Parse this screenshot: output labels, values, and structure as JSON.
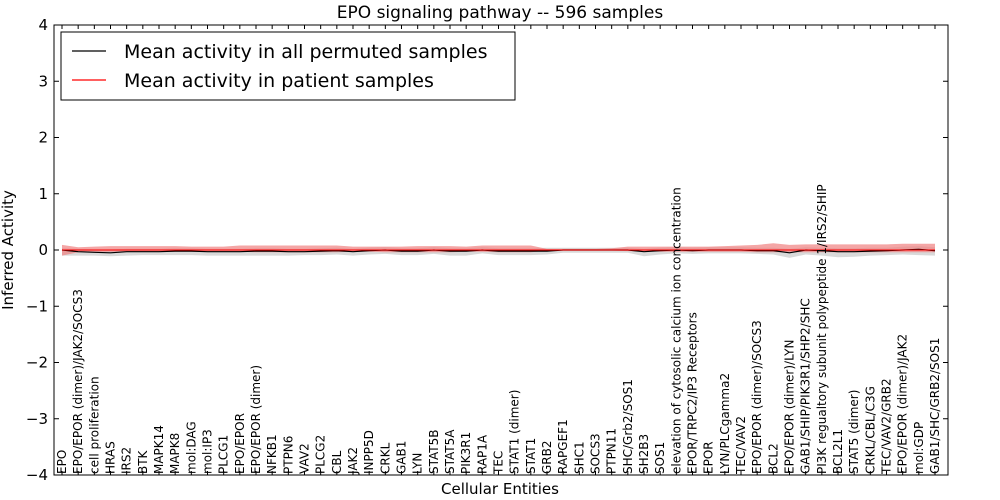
{
  "chart_data": {
    "type": "line",
    "title": "EPO signaling pathway -- 596 samples",
    "xlabel": "Cellular Entities",
    "ylabel": "Inferred Activity",
    "ylim": [
      -4,
      4
    ],
    "yticks": [
      -4,
      -3,
      -2,
      -1,
      0,
      1,
      2,
      3,
      4
    ],
    "legend_position": "top-left",
    "colors": {
      "permuted": "#000000",
      "permuted_band": "#cccccc",
      "patient": "#ff0000",
      "patient_band": "#f08080"
    },
    "categories": [
      "EPO",
      "EPO/EPOR (dimer)/JAK2/SOCS3",
      "cell proliferation",
      "HRAS",
      "IRS2",
      "BTK",
      "MAPK14",
      "MAPK8",
      "mol:DAG",
      "mol:IP3",
      "PLCG1",
      "EPO/EPOR",
      "EPO/EPOR (dimer)",
      "NFKB1",
      "PTPN6",
      "VAV2",
      "PLCG2",
      "CBL",
      "JAK2",
      "INPP5D",
      "CRKL",
      "GAB1",
      "LYN",
      "STAT5B",
      "STAT5A",
      "PIK3R1",
      "RAP1A",
      "TEC",
      "STAT1 (dimer)",
      "STAT1",
      "GRB2",
      "RAPGEF1",
      "SHC1",
      "SOCS3",
      "PTPN11",
      "SHC/Grb2/SOS1",
      "SH2B3",
      "SOS1",
      "elevation of cytosolic calcium ion concentration",
      "EPOR/TRPC2/IP3 Receptors",
      "EPOR",
      "LYN/PLCgamma2",
      "TEC/VAV2",
      "EPO/EPOR (dimer)/SOCS3",
      "BCL2",
      "EPO/EPOR (dimer)/LYN",
      "GAB1/SHIP/PIK3R1/SHP2/SHC",
      "PI3K regualtory subunit polypeptide 1/IRS2/SHIP",
      "BCL2L1",
      "STAT5 (dimer)",
      "CRKL/CBL/C3G",
      "TEC/VAV2/GRB2",
      "EPO/EPOR (dimer)/JAK2",
      "mol:GDP",
      "GAB1/SHC/GRB2/SOS1"
    ],
    "series": [
      {
        "name": "Mean activity in all permuted samples",
        "color": "#000000",
        "values": [
          0.0,
          -0.03,
          -0.04,
          -0.05,
          -0.03,
          -0.03,
          -0.03,
          -0.02,
          -0.02,
          -0.03,
          -0.03,
          -0.03,
          -0.02,
          -0.02,
          -0.03,
          -0.03,
          -0.02,
          -0.01,
          -0.03,
          -0.01,
          0.0,
          -0.02,
          -0.02,
          0.0,
          -0.02,
          -0.02,
          0.0,
          -0.02,
          -0.02,
          -0.02,
          -0.02,
          0.0,
          0.0,
          0.0,
          0.0,
          0.0,
          -0.03,
          -0.01,
          0.0,
          -0.01,
          0.0,
          0.0,
          0.0,
          -0.01,
          -0.01,
          -0.05,
          0.0,
          -0.01,
          -0.03,
          -0.03,
          -0.02,
          -0.01,
          0.0,
          0.01,
          -0.01
        ],
        "band_low": [
          -0.1,
          -0.1,
          -0.1,
          -0.11,
          -0.1,
          -0.09,
          -0.09,
          -0.09,
          -0.09,
          -0.1,
          -0.1,
          -0.1,
          -0.1,
          -0.1,
          -0.1,
          -0.09,
          -0.09,
          -0.08,
          -0.1,
          -0.08,
          -0.07,
          -0.09,
          -0.09,
          -0.07,
          -0.1,
          -0.1,
          -0.06,
          -0.09,
          -0.09,
          -0.09,
          -0.08,
          -0.05,
          -0.05,
          -0.05,
          -0.05,
          -0.05,
          -0.11,
          -0.08,
          -0.06,
          -0.07,
          -0.06,
          -0.06,
          -0.06,
          -0.07,
          -0.08,
          -0.14,
          -0.08,
          -0.1,
          -0.13,
          -0.12,
          -0.1,
          -0.09,
          -0.08,
          -0.09,
          -0.1
        ],
        "band_high": [
          0.03,
          0.02,
          0.01,
          0.01,
          0.02,
          0.02,
          0.02,
          0.03,
          0.03,
          0.02,
          0.02,
          0.02,
          0.03,
          0.03,
          0.02,
          0.02,
          0.03,
          0.04,
          0.02,
          0.04,
          0.05,
          0.03,
          0.03,
          0.05,
          0.03,
          0.03,
          0.05,
          0.03,
          0.03,
          0.03,
          0.04,
          0.04,
          0.04,
          0.04,
          0.04,
          0.04,
          0.02,
          0.04,
          0.05,
          0.04,
          0.05,
          0.05,
          0.05,
          0.04,
          0.04,
          0.02,
          0.05,
          0.04,
          0.03,
          0.03,
          0.04,
          0.04,
          0.06,
          0.07,
          0.05
        ]
      },
      {
        "name": "Mean activity in patient samples",
        "color": "#ff0000",
        "values": [
          0.0,
          0.0,
          0.0,
          0.0,
          0.0,
          0.0,
          0.0,
          0.0,
          0.0,
          0.0,
          0.0,
          0.0,
          0.0,
          0.0,
          0.0,
          0.0,
          0.0,
          0.0,
          0.0,
          0.0,
          0.0,
          0.0,
          0.0,
          0.0,
          0.0,
          0.0,
          0.0,
          0.0,
          0.0,
          0.0,
          0.0,
          0.0,
          0.0,
          0.0,
          0.0,
          0.0,
          0.0,
          0.0,
          0.0,
          0.0,
          0.0,
          0.0,
          0.0,
          0.0,
          0.0,
          0.0,
          0.0,
          0.0,
          0.0,
          0.0,
          0.0,
          0.0,
          0.0,
          0.0,
          0.0
        ],
        "band_low": [
          -0.1,
          -0.04,
          -0.03,
          -0.03,
          -0.03,
          -0.03,
          -0.03,
          -0.03,
          -0.03,
          -0.03,
          -0.03,
          -0.03,
          -0.04,
          -0.04,
          -0.04,
          -0.04,
          -0.04,
          -0.04,
          -0.03,
          -0.03,
          -0.04,
          -0.04,
          -0.04,
          -0.04,
          -0.04,
          -0.03,
          -0.03,
          -0.04,
          -0.04,
          -0.04,
          -0.01,
          -0.01,
          -0.01,
          -0.01,
          -0.01,
          -0.02,
          -0.02,
          -0.03,
          -0.03,
          -0.03,
          -0.03,
          -0.03,
          -0.03,
          -0.04,
          -0.04,
          -0.04,
          -0.04,
          -0.04,
          -0.04,
          -0.04,
          -0.04,
          -0.04,
          -0.04,
          -0.04,
          -0.04
        ],
        "band_high": [
          0.09,
          0.05,
          0.06,
          0.07,
          0.07,
          0.07,
          0.07,
          0.07,
          0.06,
          0.06,
          0.06,
          0.08,
          0.08,
          0.08,
          0.08,
          0.08,
          0.08,
          0.08,
          0.06,
          0.06,
          0.06,
          0.06,
          0.07,
          0.07,
          0.07,
          0.06,
          0.08,
          0.08,
          0.08,
          0.08,
          0.02,
          0.02,
          0.02,
          0.02,
          0.03,
          0.06,
          0.06,
          0.06,
          0.06,
          0.06,
          0.06,
          0.07,
          0.08,
          0.09,
          0.12,
          0.09,
          0.1,
          0.1,
          0.1,
          0.1,
          0.1,
          0.1,
          0.11,
          0.11,
          0.11
        ]
      }
    ]
  }
}
